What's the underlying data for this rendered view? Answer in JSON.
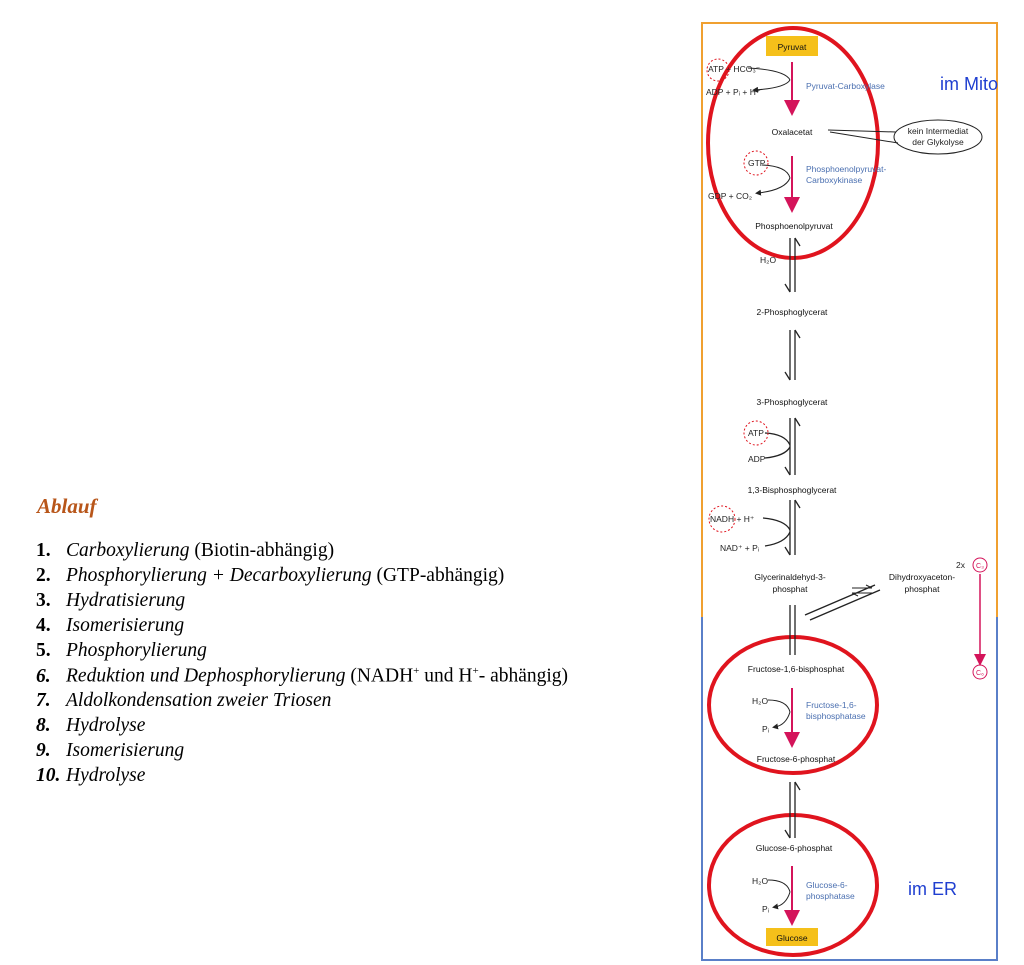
{
  "ablauf": {
    "title": "Ablauf",
    "steps": [
      {
        "num": "1.",
        "name": "Carboxylierung",
        "note": " (Biotin-abhängig)"
      },
      {
        "num": "2.",
        "name": "Phosphorylierung + Decarboxylierung",
        "note": " (GTP-abhängig)"
      },
      {
        "num": "3.",
        "name": "Hydratisierung",
        "note": ""
      },
      {
        "num": "4.",
        "name": "Isomerisierung",
        "note": ""
      },
      {
        "num": "5.",
        "name": "Phosphorylierung",
        "note": ""
      },
      {
        "num": "6.",
        "name": "Reduktion und Dephosphorylierung",
        "note_prefix": " (NADH",
        "sup1": "+",
        "note_mid": " und H",
        "sup2": "+",
        "note_suffix": "- abhängig)"
      },
      {
        "num": "7.",
        "name": "Aldolkondensation zweier Triosen",
        "note": ""
      },
      {
        "num": "8.",
        "name": "Hydrolyse",
        "note": ""
      },
      {
        "num": "9.",
        "name": "Isomerisierung",
        "note": ""
      },
      {
        "num": "10.",
        "name": "Hydrolyse",
        "note": ""
      }
    ]
  },
  "pathway": {
    "location_mito": "im Mito",
    "location_er": "im ER",
    "metabolites": {
      "pyruvat": "Pyruvat",
      "oxalacetat": "Oxalacetat",
      "pep": "Phosphoenolpyruvat",
      "pg2": "2-Phosphoglycerat",
      "pg3": "3-Phosphoglycerat",
      "bpg": "1,3-Bisphosphoglycerat",
      "gap1": "Glycerinaldehyd-3-",
      "gap2": "phosphat",
      "dhap1": "Dihydroxyaceton-",
      "dhap2": "phosphat",
      "fbp": "Fructose-1,6-bisphosphat",
      "f6p": "Fructose-6-phosphat",
      "g6p": "Glucose-6-phosphat",
      "glucose": "Glucose"
    },
    "enzymes": {
      "pc": "Pyruvat-Carboxylase",
      "pepck1": "Phosphoenolpyruvat-",
      "pepck2": "Carboxykinase",
      "fbpase1": "Fructose-1,6-",
      "fbpase2": "bisphosphatase",
      "g6pase1": "Glucose-6-",
      "g6pase2": "phosphatase"
    },
    "cofactors": {
      "atp_hco3": "ATP + HCO₃⁻",
      "adp_pi_h": "ADP + Pᵢ + H⁺",
      "gtp": "GTP",
      "gdp_co2": "GDP + CO₂",
      "h2o": "H₂O",
      "atp": "ATP",
      "adp": "ADP",
      "nadh_h": "NADH + H⁺",
      "nad_pi": "NAD⁺ + Pᵢ",
      "pi": "Pᵢ"
    },
    "callout1": "kein Intermediat",
    "callout2": "der Glykolyse",
    "c3_count": "2x",
    "c3": "C₃",
    "c6": "C₆",
    "colors": {
      "mito_border": "#f0a030",
      "er_border": "#5a7fc8",
      "ring": "#e0141e",
      "pink_arrow": "#d4145a",
      "metabolite_box": "#f5c01a",
      "enzyme_text": "#4a6fb0",
      "location_text": "#1f3fd0"
    }
  }
}
